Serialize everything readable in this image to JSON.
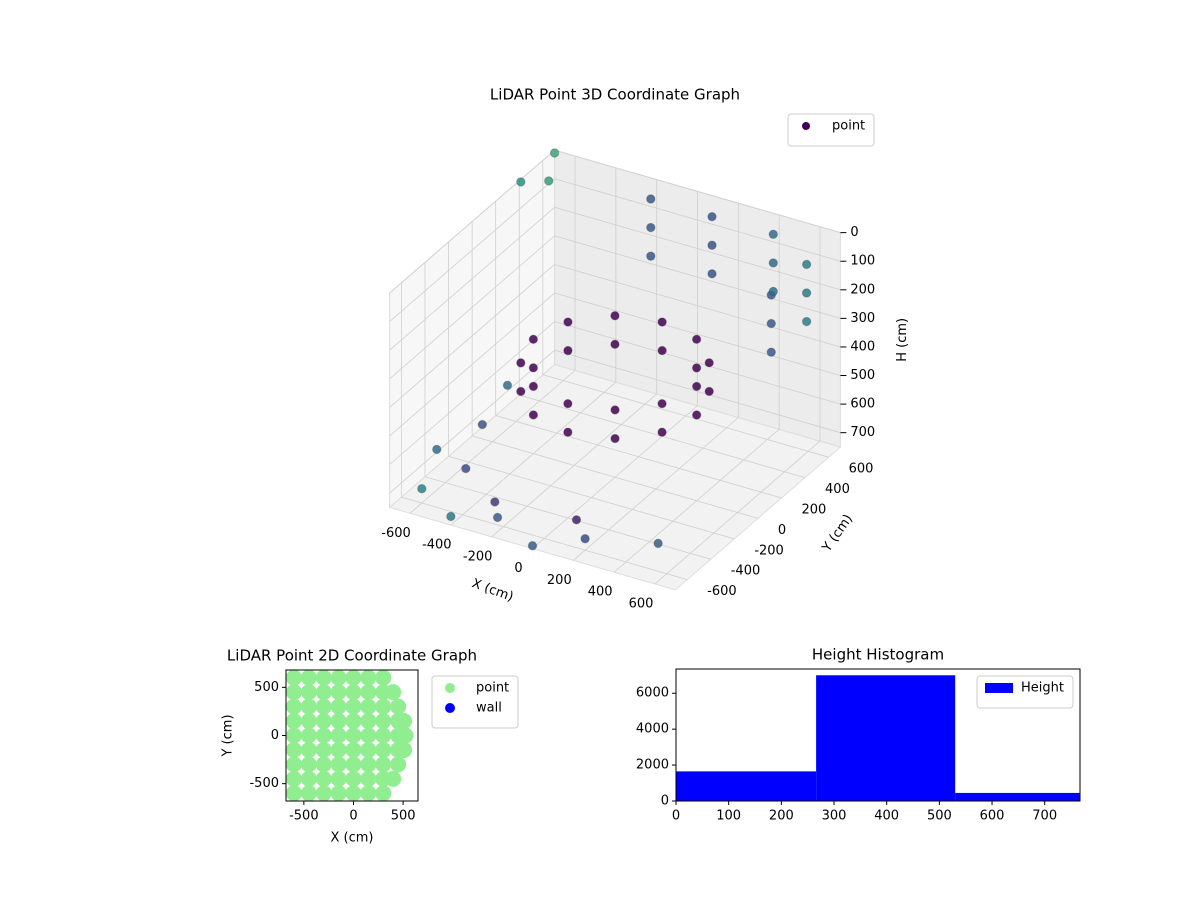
{
  "chart_data": [
    {
      "type": "scatter3d",
      "title": "LiDAR Point 3D Coordinate Graph",
      "xlabel": "X (cm)",
      "ylabel": "Y (cm)",
      "zlabel": "H (cm)",
      "xlim": [
        -700,
        700
      ],
      "ylim": [
        -700,
        700
      ],
      "zlim": [
        750,
        0
      ],
      "xticks": [
        -600,
        -400,
        -200,
        0,
        200,
        400,
        600
      ],
      "yticks": [
        -600,
        -400,
        -200,
        0,
        200,
        400,
        600
      ],
      "zticks": [
        0,
        100,
        200,
        300,
        400,
        500,
        600,
        700
      ],
      "cmap": "viridis",
      "legend": "upper right",
      "grid": true,
      "series": [
        {
          "name": "point",
          "color": "#440154",
          "x": [
            400,
            346,
            200,
            0,
            -200,
            -346,
            -400,
            -346,
            -200,
            0,
            200,
            346,
            400,
            346,
            200,
            0,
            -200,
            -346,
            -400,
            -346,
            -200,
            0,
            200,
            346,
            -200,
            -200,
            -200,
            100,
            100,
            100,
            400,
            400,
            400,
            650,
            650,
            650,
            650,
            650,
            650,
            -600,
            -400,
            -200,
            0,
            200,
            -700,
            -650,
            -700,
            500,
            -500,
            -300,
            100,
            -700,
            -750,
            -700
          ],
          "y": [
            0,
            200,
            346,
            400,
            346,
            200,
            0,
            -200,
            -346,
            -400,
            -346,
            -200,
            0,
            200,
            346,
            400,
            346,
            200,
            0,
            -200,
            -346,
            -400,
            -346,
            -200,
            650,
            650,
            650,
            650,
            650,
            650,
            650,
            650,
            650,
            500,
            500,
            500,
            200,
            200,
            200,
            -600,
            -700,
            -650,
            -700,
            -600,
            -300,
            0,
            300,
            -500,
            -400,
            -500,
            -500,
            700,
            500,
            650
          ],
          "z": [
            350,
            350,
            350,
            350,
            350,
            350,
            350,
            350,
            350,
            350,
            350,
            350,
            450,
            450,
            450,
            450,
            450,
            450,
            450,
            450,
            450,
            450,
            450,
            450,
            50,
            150,
            250,
            50,
            150,
            250,
            50,
            150,
            250,
            50,
            150,
            250,
            50,
            150,
            250,
            700,
            720,
            700,
            740,
            710,
            690,
            700,
            680,
            700,
            680,
            720,
            700,
            10,
            50,
            90
          ]
        }
      ]
    },
    {
      "type": "scatter",
      "title": "LiDAR Point 2D Coordinate Graph",
      "xlabel": "X (cm)",
      "ylabel": "Y (cm)",
      "xlim": [
        -680,
        650
      ],
      "ylim": [
        -680,
        680
      ],
      "xticks": [
        -500,
        0,
        500
      ],
      "yticks": [
        -500,
        0,
        500
      ],
      "legend": "right",
      "series": [
        {
          "name": "point",
          "color": "#90ee90",
          "x": [
            -600,
            -450,
            -300,
            -150,
            0,
            150,
            300,
            -600,
            -450,
            -300,
            -150,
            0,
            150,
            300,
            400,
            -600,
            -450,
            -300,
            -150,
            0,
            150,
            300,
            450,
            -600,
            -450,
            -300,
            -150,
            0,
            150,
            300,
            450,
            510,
            -600,
            -450,
            -300,
            -150,
            0,
            150,
            300,
            450,
            525,
            -600,
            -450,
            -300,
            -150,
            0,
            150,
            300,
            450,
            510,
            -600,
            -450,
            -300,
            -150,
            0,
            150,
            300,
            450,
            -600,
            -450,
            -300,
            -150,
            0,
            150,
            300,
            400,
            -600,
            -450,
            -300,
            -150,
            0,
            150,
            300
          ],
          "y": [
            -600,
            -600,
            -600,
            -600,
            -600,
            -600,
            -600,
            -450,
            -450,
            -450,
            -450,
            -450,
            -450,
            -450,
            -450,
            -300,
            -300,
            -300,
            -300,
            -300,
            -300,
            -300,
            -300,
            -150,
            -150,
            -150,
            -150,
            -150,
            -150,
            -150,
            -150,
            -150,
            0,
            0,
            0,
            0,
            0,
            0,
            0,
            0,
            0,
            150,
            150,
            150,
            150,
            150,
            150,
            150,
            150,
            150,
            300,
            300,
            300,
            300,
            300,
            300,
            300,
            300,
            450,
            450,
            450,
            450,
            450,
            450,
            450,
            450,
            600,
            600,
            600,
            600,
            600,
            600,
            600
          ]
        },
        {
          "name": "wall",
          "color": "#0000ff",
          "x": [],
          "y": []
        }
      ]
    },
    {
      "type": "histogram",
      "title": "Height Histogram",
      "bins": [
        0,
        266,
        530,
        767
      ],
      "xlim": [
        0,
        767
      ],
      "ylim": [
        0,
        7350
      ],
      "xticks": [
        0,
        100,
        200,
        300,
        400,
        500,
        600,
        700
      ],
      "yticks": [
        0,
        2000,
        4000,
        6000
      ],
      "legend": "upper right",
      "series": [
        {
          "name": "Height",
          "color": "#0000ff",
          "values": [
            1650,
            7000,
            450
          ]
        }
      ]
    }
  ]
}
